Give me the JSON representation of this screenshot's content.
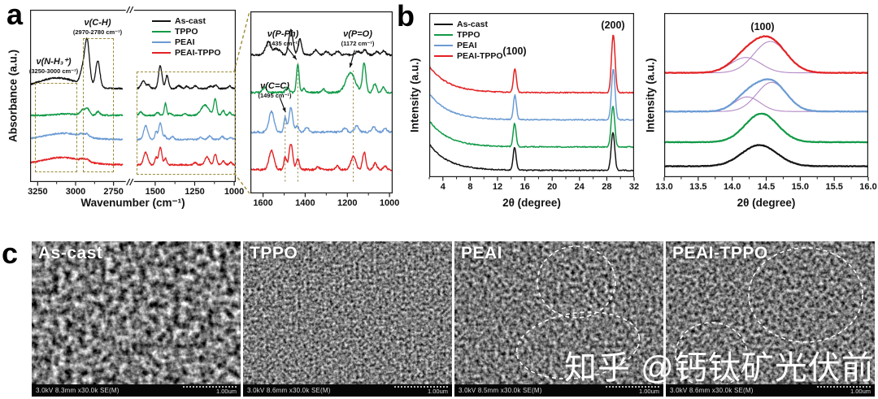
{
  "panel_labels": {
    "a": "a",
    "b": "b",
    "c": "c"
  },
  "colors": {
    "as_cast": "#141414",
    "tppo": "#119a47",
    "peai": "#6b9bd3",
    "peai_tppo": "#e32224",
    "annotation_box": "#9c8b36",
    "deconvolution": "#b389c5"
  },
  "watermark": "知乎 @钙钛矿光伏前沿",
  "sem": {
    "items": [
      {
        "label": "As-cast",
        "info": "3.0kV 8.3mm x30.0k SE(M)",
        "scale": "1.00um"
      },
      {
        "label": "TPPO",
        "info": "3.0kV 8.6mm x30.0k SE(M)",
        "scale": "1.00um"
      },
      {
        "label": "PEAI",
        "info": "3.0kV 8.5mm x30.0k SE(M)",
        "scale": "1.00um"
      },
      {
        "label": "PEAI-TPPO",
        "info": "3.0kV 8.6mm x30.0k SE(M)",
        "scale": "1.00um"
      }
    ]
  },
  "chart_data": [
    {
      "id": "ftir_full",
      "type": "line",
      "xlabel": "Wavenumber (cm⁻¹)",
      "ylabel": "Absorbance (a.u.)",
      "legend": [
        "As-cast",
        "TPPO",
        "PEAI",
        "PEAI-TPPO"
      ],
      "annotations": {
        "nh3": {
          "title": "ν(N-H₃⁺)",
          "range": "(3250-3000 cm⁻¹)"
        },
        "ch": {
          "title": "ν(C-H)",
          "range": "(2970-2780 cm⁻¹)"
        }
      },
      "x_axis": {
        "segments": [
          {
            "range": [
              3300,
              2690
            ],
            "frac": [
              0,
              0.45
            ]
          },
          {
            "range": [
              1615,
              990
            ],
            "frac": [
              0.52,
              1
            ]
          }
        ],
        "break_frac": 0.485,
        "ticks": [
          {
            "v": 3250,
            "l": "3250"
          },
          {
            "v": 3000,
            "l": "3000"
          },
          {
            "v": 2750,
            "l": "2750"
          },
          {
            "v": 1500,
            "l": "1500"
          },
          {
            "v": 1250,
            "l": "1250"
          },
          {
            "v": 1000,
            "l": "1000"
          }
        ],
        "minor": [
          3125,
          2875,
          1375,
          1125
        ]
      },
      "ylim": [
        0,
        4.7
      ],
      "stroke": 1.3,
      "series": [
        {
          "name": "As-cast",
          "color": "#141414",
          "offset": 2.55,
          "noise": 0.02,
          "seed": 11,
          "peaks": [
            [
              3120,
              130,
              0.29
            ],
            [
              2958,
              14,
              0.32
            ],
            [
              2925,
              16,
              1.25
            ],
            [
              2854,
              14,
              0.72
            ],
            [
              1575,
              14,
              0.2
            ],
            [
              1540,
              10,
              0.09
            ],
            [
              1468,
              11,
              0.62
            ],
            [
              1425,
              9,
              0.36
            ],
            [
              1350,
              12,
              0.08
            ],
            [
              1300,
              10,
              0.06
            ],
            [
              1246,
              10,
              0.07
            ],
            [
              1150,
              12,
              0.06
            ],
            [
              1118,
              10,
              0.09
            ],
            [
              1028,
              10,
              0.07
            ]
          ]
        },
        {
          "name": "TPPO",
          "color": "#119a47",
          "offset": 1.82,
          "noise": 0.02,
          "seed": 22,
          "peaks": [
            [
              3060,
              60,
              0.04
            ],
            [
              2955,
              14,
              0.14
            ],
            [
              2922,
              14,
              0.18
            ],
            [
              2852,
              12,
              0.1
            ],
            [
              1592,
              10,
              0.09
            ],
            [
              1485,
              9,
              0.08
            ],
            [
              1435,
              7,
              0.33
            ],
            [
              1405,
              8,
              0.06
            ],
            [
              1312,
              9,
              0.05
            ],
            [
              1185,
              24,
              0.28
            ],
            [
              1120,
              9,
              0.45
            ],
            [
              1070,
              9,
              0.13
            ],
            [
              1028,
              8,
              0.08
            ]
          ]
        },
        {
          "name": "PEAI",
          "color": "#6b9bd3",
          "offset": 1.16,
          "noise": 0.02,
          "seed": 33,
          "peaks": [
            [
              3080,
              120,
              0.17
            ],
            [
              2960,
              14,
              0.06
            ],
            [
              2925,
              14,
              0.08
            ],
            [
              1560,
              13,
              0.38
            ],
            [
              1495,
              7,
              0.22
            ],
            [
              1468,
              10,
              0.45
            ],
            [
              1438,
              8,
              0.1
            ],
            [
              1392,
              10,
              0.08
            ],
            [
              1212,
              10,
              0.06
            ],
            [
              1155,
              11,
              0.1
            ],
            [
              1075,
              10,
              0.08
            ],
            [
              1020,
              9,
              0.05
            ]
          ]
        },
        {
          "name": "PEAI-TPPO",
          "color": "#e32224",
          "offset": 0.47,
          "noise": 0.02,
          "seed": 44,
          "peaks": [
            [
              3090,
              130,
              0.2
            ],
            [
              2958,
              13,
              0.05
            ],
            [
              2925,
              13,
              0.07
            ],
            [
              1560,
              13,
              0.34
            ],
            [
              1495,
              7,
              0.2
            ],
            [
              1468,
              10,
              0.47
            ],
            [
              1435,
              8,
              0.18
            ],
            [
              1248,
              9,
              0.06
            ],
            [
              1172,
              13,
              0.22
            ],
            [
              1120,
              9,
              0.3
            ],
            [
              1068,
              9,
              0.1
            ],
            [
              1022,
              8,
              0.07
            ]
          ]
        }
      ]
    },
    {
      "id": "ftir_zoom",
      "type": "line",
      "xlabel": "",
      "ylabel": "",
      "annotations": {
        "pph": {
          "title": "ν(P-Ph)",
          "range": "(1435 cm⁻¹)"
        },
        "po": {
          "title": "ν(P=O)",
          "range": "(1172 cm⁻¹)"
        },
        "cc": {
          "title": "ν(C=C)",
          "range": "(1495 cm⁻¹)"
        }
      },
      "x_axis": {
        "range": [
          1660,
          985
        ],
        "ticks": [
          {
            "v": 1600,
            "l": "1600"
          },
          {
            "v": 1400,
            "l": "1400"
          },
          {
            "v": 1200,
            "l": "1200"
          },
          {
            "v": 1000,
            "l": "1000"
          }
        ],
        "minor": [
          1500,
          1300,
          1100
        ]
      },
      "ylim": [
        0,
        4.6
      ],
      "stroke": 1.4,
      "ref_color": "#8a7a30",
      "ref_lines": [
        {
          "x": 1495,
          "y0": 0.3,
          "y1": 2.0
        },
        {
          "x": 1435,
          "y0": 0.3,
          "y1": 3.3
        },
        {
          "x": 1172,
          "y0": 0.3,
          "y1": 3.1
        }
      ],
      "arrows": [
        {
          "f": [
            1487,
            3.7
          ],
          "t": [
            1441,
            3.38
          ]
        },
        {
          "f": [
            1165,
            3.62
          ],
          "t": [
            1188,
            3.18
          ]
        },
        {
          "f": [
            1520,
            2.42
          ],
          "t": [
            1493,
            2.05
          ]
        }
      ],
      "series": [
        {
          "name": "As-cast",
          "color": "#141414",
          "offset": 3.5,
          "noise": 0.025,
          "seed": 55,
          "peaks": [
            [
              1575,
              13,
              0.32
            ],
            [
              1540,
              9,
              0.15
            ],
            [
              1520,
              8,
              0.1
            ],
            [
              1468,
              10,
              0.62
            ],
            [
              1425,
              8,
              0.4
            ],
            [
              1350,
              11,
              0.12
            ],
            [
              1300,
              9,
              0.09
            ],
            [
              1246,
              9,
              0.1
            ],
            [
              1150,
              11,
              0.09
            ],
            [
              1118,
              9,
              0.13
            ],
            [
              1060,
              9,
              0.08
            ],
            [
              1028,
              9,
              0.1
            ]
          ]
        },
        {
          "name": "TPPO",
          "color": "#119a47",
          "offset": 2.55,
          "noise": 0.025,
          "seed": 66,
          "peaks": [
            [
              1592,
              9,
              0.13
            ],
            [
              1485,
              8,
              0.12
            ],
            [
              1435,
              6,
              0.72
            ],
            [
              1405,
              7,
              0.1
            ],
            [
              1312,
              8,
              0.08
            ],
            [
              1185,
              22,
              0.5
            ],
            [
              1120,
              8,
              0.75
            ],
            [
              1070,
              8,
              0.22
            ],
            [
              1028,
              7,
              0.13
            ]
          ]
        },
        {
          "name": "PEAI",
          "color": "#6b9bd3",
          "offset": 1.55,
          "noise": 0.025,
          "seed": 77,
          "peaks": [
            [
              1560,
              12,
              0.52
            ],
            [
              1495,
              6,
              0.38
            ],
            [
              1468,
              9,
              0.62
            ],
            [
              1438,
              7,
              0.16
            ],
            [
              1392,
              9,
              0.13
            ],
            [
              1212,
              9,
              0.1
            ],
            [
              1155,
              10,
              0.15
            ],
            [
              1075,
              9,
              0.13
            ],
            [
              1020,
              8,
              0.09
            ]
          ]
        },
        {
          "name": "PEAI-TPPO",
          "color": "#e32224",
          "offset": 0.6,
          "noise": 0.025,
          "seed": 88,
          "peaks": [
            [
              1560,
              12,
              0.48
            ],
            [
              1495,
              6,
              0.32
            ],
            [
              1468,
              9,
              0.65
            ],
            [
              1435,
              7,
              0.28
            ],
            [
              1340,
              8,
              0.07
            ],
            [
              1248,
              8,
              0.09
            ],
            [
              1172,
              12,
              0.33
            ],
            [
              1120,
              8,
              0.44
            ],
            [
              1068,
              8,
              0.16
            ],
            [
              1022,
              7,
              0.1
            ]
          ]
        }
      ]
    },
    {
      "id": "xrd_full",
      "type": "line",
      "xlabel": "2θ (degree)",
      "ylabel": "Intensity (a.u.)",
      "legend": [
        "As-cast",
        "TPPO",
        "PEAI",
        "PEAI-TPPO"
      ],
      "annotations": {
        "p100": "(100)",
        "p200": "(200)"
      },
      "x_axis": {
        "range": [
          2,
          32
        ],
        "ticks": [
          {
            "v": 4,
            "l": "4"
          },
          {
            "v": 8,
            "l": "8"
          },
          {
            "v": 12,
            "l": "12"
          },
          {
            "v": 16,
            "l": "16"
          },
          {
            "v": 20,
            "l": "20"
          },
          {
            "v": 24,
            "l": "24"
          },
          {
            "v": 28,
            "l": "28"
          },
          {
            "v": 32,
            "l": "32"
          }
        ],
        "minor": [
          2,
          6,
          10,
          14,
          18,
          22,
          26,
          30
        ]
      },
      "ylim": [
        0,
        4.35
      ],
      "stroke": 1.5,
      "series": [
        {
          "name": "As-cast",
          "color": "#141414",
          "offset": 0.18,
          "noise": 0.014,
          "seed": 21,
          "decay": [
            0.7,
            2.8,
            2
          ],
          "peaks": [
            [
              14.5,
              0.22,
              0.6
            ],
            [
              28.9,
              0.26,
              1.0
            ]
          ]
        },
        {
          "name": "TPPO",
          "color": "#119a47",
          "offset": 0.8,
          "noise": 0.014,
          "seed": 31,
          "decay": [
            0.7,
            2.8,
            2
          ],
          "peaks": [
            [
              14.5,
              0.22,
              0.62
            ],
            [
              28.9,
              0.26,
              1.08
            ]
          ]
        },
        {
          "name": "PEAI",
          "color": "#6b9bd3",
          "offset": 1.52,
          "noise": 0.014,
          "seed": 41,
          "decay": [
            0.7,
            2.8,
            2
          ],
          "peaks": [
            [
              14.55,
              0.22,
              0.65
            ],
            [
              28.95,
              0.26,
              1.35
            ]
          ]
        },
        {
          "name": "PEAI-TPPO",
          "color": "#e32224",
          "offset": 2.24,
          "noise": 0.014,
          "seed": 51,
          "decay": [
            0.7,
            2.8,
            2
          ],
          "peaks": [
            [
              14.55,
              0.22,
              0.62
            ],
            [
              28.95,
              0.26,
              1.55
            ]
          ]
        }
      ]
    },
    {
      "id": "xrd_zoom",
      "type": "line",
      "xlabel": "2θ (degree)",
      "ylabel": "Intensity (a.u.)",
      "annotations": {
        "p100": "(100)"
      },
      "x_axis": {
        "range": [
          13,
          16
        ],
        "ticks": [
          {
            "v": 13,
            "l": "13.0"
          },
          {
            "v": 13.5,
            "l": "13.5"
          },
          {
            "v": 14,
            "l": "14.0"
          },
          {
            "v": 14.5,
            "l": "14.5"
          },
          {
            "v": 15,
            "l": "15.0"
          },
          {
            "v": 15.5,
            "l": "15.5"
          },
          {
            "v": 16,
            "l": "16.0"
          }
        ],
        "minor": [
          13.25,
          13.75,
          14.25,
          14.75,
          15.25,
          15.75
        ]
      },
      "ylim": [
        0,
        4.5
      ],
      "stroke": 2.2,
      "deconv_color": "#b389c5",
      "series": [
        {
          "name": "As-cast",
          "color": "#141414",
          "offset": 0.3,
          "noise": 0.008,
          "seed": 61,
          "peaks": [
            [
              14.4,
              0.26,
              0.58
            ]
          ]
        },
        {
          "name": "TPPO",
          "color": "#119a47",
          "offset": 0.96,
          "noise": 0.008,
          "seed": 71,
          "peaks": [
            [
              14.43,
              0.24,
              0.78
            ]
          ]
        },
        {
          "name": "PEAI",
          "color": "#6b9bd3",
          "offset": 1.8,
          "noise": 0.008,
          "seed": 81,
          "components": [
            [
              14.22,
              0.19,
              0.4
            ],
            [
              14.58,
              0.22,
              0.8
            ]
          ]
        },
        {
          "name": "PEAI-TPPO",
          "color": "#e32224",
          "offset": 2.86,
          "noise": 0.008,
          "seed": 91,
          "components": [
            [
              14.2,
              0.22,
              0.42
            ],
            [
              14.56,
              0.24,
              0.86
            ]
          ]
        }
      ]
    }
  ]
}
